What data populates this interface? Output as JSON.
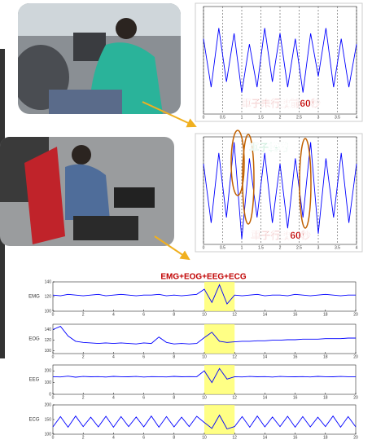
{
  "chart_data": [
    {
      "type": "line",
      "color": "#0000ff",
      "x": [
        0,
        0.2,
        0.4,
        0.6,
        0.8,
        1,
        1.2,
        1.4,
        1.6,
        1.8,
        2,
        2.2,
        2.4,
        2.6,
        2.8,
        3,
        3.2,
        3.4,
        3.6,
        3.8,
        4
      ],
      "values": [
        0.4,
        -0.5,
        0.6,
        -0.4,
        0.5,
        -0.6,
        0.3,
        -0.5,
        0.6,
        -0.4,
        0.5,
        -0.5,
        0.4,
        -0.6,
        0.5,
        -0.3,
        0.6,
        -0.5,
        0.4,
        -0.5,
        0.3
      ],
      "xlim": [
        0,
        4
      ],
      "xticks": [
        0,
        0.5,
        1,
        1.5,
        2,
        2.5,
        3,
        3.5,
        4
      ],
      "ylim": [
        -1,
        1
      ],
      "grid": true,
      "annotations": [
        {
          "text": "車子未行駛前60秒",
          "color": "#c00000"
        }
      ]
    },
    {
      "type": "line",
      "color": "#0000ff",
      "x": [
        0,
        0.2,
        0.4,
        0.6,
        0.8,
        1,
        1.2,
        1.4,
        1.6,
        1.8,
        2,
        2.2,
        2.4,
        2.6,
        2.8,
        3,
        3.2,
        3.4,
        3.6,
        3.8,
        4
      ],
      "values": [
        0.5,
        -0.6,
        0.7,
        -0.5,
        0.9,
        -0.9,
        0.6,
        -0.5,
        0.7,
        -0.6,
        0.5,
        -0.7,
        0.6,
        -0.5,
        0.9,
        -0.8,
        0.6,
        -0.5,
        0.7,
        -0.6,
        0.5
      ],
      "xlim": [
        0,
        4
      ],
      "xticks": [
        0,
        0.5,
        1,
        1.5,
        2,
        2.5,
        3,
        3.5,
        4
      ],
      "ylim": [
        -1,
        1
      ],
      "grid": true,
      "annotations": [
        {
          "text": "車子轉彎",
          "color": "#00a050"
        },
        {
          "text": "車子行駛60秒",
          "color": "#c00000"
        }
      ]
    },
    {
      "type": "multi-line",
      "title": "EMG+EOG+EEG+ECG",
      "color": "#0000ff",
      "highlight_color": "#ffff66",
      "x": [
        0,
        0.5,
        1,
        1.5,
        2,
        2.5,
        3,
        3.5,
        4,
        4.5,
        5,
        5.5,
        6,
        6.5,
        7,
        7.5,
        8,
        8.5,
        9,
        9.5,
        10,
        10.5,
        11,
        11.5,
        12,
        12.5,
        13,
        13.5,
        14,
        14.5,
        15,
        15.5,
        16,
        16.5,
        17,
        17.5,
        18,
        18.5,
        19,
        19.5,
        20
      ],
      "xlim": [
        0,
        20
      ],
      "xticks": [
        0,
        2,
        4,
        6,
        8,
        10,
        12,
        14,
        16,
        18,
        20
      ],
      "highlight_x": [
        10,
        12
      ],
      "panels": [
        {
          "name": "EMG",
          "ylim": [
            100,
            140
          ],
          "yticks": [
            100,
            120,
            140
          ],
          "values": [
            122,
            121,
            123,
            122,
            121,
            122,
            123,
            121,
            122,
            123,
            122,
            121,
            122,
            122,
            123,
            121,
            122,
            121,
            122,
            123,
            130,
            112,
            136,
            110,
            122,
            121,
            122,
            123,
            121,
            122,
            122,
            121,
            123,
            122,
            121,
            122,
            123,
            122,
            121,
            122,
            122
          ]
        },
        {
          "name": "EOG",
          "ylim": [
            95,
            150
          ],
          "yticks": [
            100,
            120,
            140
          ],
          "values": [
            140,
            146,
            128,
            118,
            116,
            115,
            114,
            115,
            114,
            115,
            114,
            113,
            115,
            114,
            126,
            116,
            113,
            114,
            113,
            114,
            125,
            135,
            118,
            116,
            117,
            118,
            118,
            119,
            119,
            120,
            120,
            121,
            121,
            122,
            122,
            122,
            123,
            123,
            123,
            124,
            124
          ]
        },
        {
          "name": "EEG",
          "ylim": [
            0,
            250
          ],
          "yticks": [
            0,
            100,
            200
          ],
          "values": [
            150,
            148,
            155,
            146,
            152,
            149,
            151,
            147,
            153,
            150,
            149,
            152,
            147,
            151,
            150,
            148,
            153,
            149,
            151,
            150,
            200,
            100,
            220,
            130,
            150,
            148,
            152,
            149,
            151,
            147,
            152,
            150,
            149,
            151,
            148,
            153,
            150,
            149,
            152,
            150,
            150
          ]
        },
        {
          "name": "ECG",
          "ylim": [
            100,
            200
          ],
          "yticks": [
            100,
            150,
            200
          ],
          "values": [
            125,
            160,
            124,
            162,
            126,
            158,
            125,
            161,
            124,
            160,
            126,
            159,
            125,
            162,
            124,
            160,
            125,
            158,
            126,
            161,
            140,
            120,
            165,
            118,
            126,
            160,
            124,
            162,
            125,
            159,
            126,
            161,
            124,
            160,
            125,
            158,
            126,
            162,
            124,
            160,
            125
          ]
        }
      ]
    }
  ]
}
